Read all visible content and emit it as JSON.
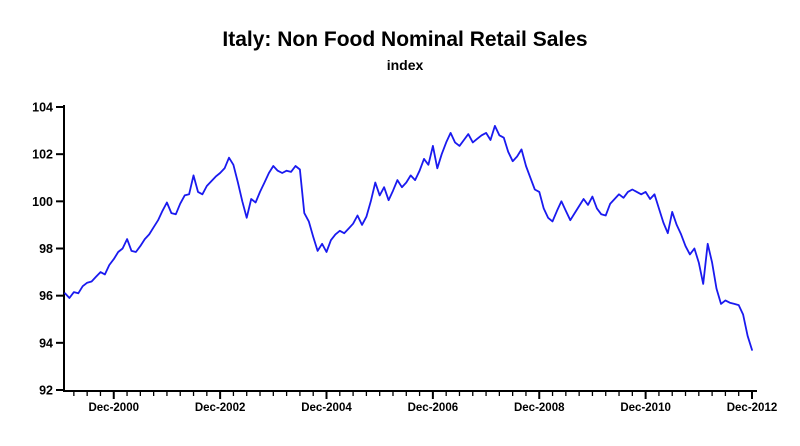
{
  "chart_data": {
    "type": "line",
    "title": "Italy: Non Food Nominal Retail Sales",
    "subtitle": "index",
    "x_start": "Jan-2000",
    "x_end": "Dec-2012",
    "frequency": "monthly",
    "ylim": [
      92,
      104
    ],
    "y_ticks": [
      104,
      102,
      100,
      98,
      96,
      94,
      92
    ],
    "x_tick_labels": [
      {
        "month_index": 11,
        "label": "Dec-2000"
      },
      {
        "month_index": 35,
        "label": "Dec-2002"
      },
      {
        "month_index": 59,
        "label": "Dec-2004"
      },
      {
        "month_index": 83,
        "label": "Dec-2006"
      },
      {
        "month_index": 107,
        "label": "Dec-2008"
      },
      {
        "month_index": 131,
        "label": "Dec-2010"
      },
      {
        "month_index": 155,
        "label": "Dec-2012"
      }
    ],
    "minor_tick_rule": {
      "start_month_index": 2,
      "step": 3
    },
    "grid": "off",
    "legend": "none",
    "line_color": "#1a1aef",
    "axis_color": "#000000",
    "series": [
      {
        "name": "non-food-nominal-retail-sales-index",
        "values": [
          96.1,
          95.9,
          96.15,
          96.1,
          96.4,
          96.55,
          96.6,
          96.8,
          97.0,
          96.9,
          97.3,
          97.55,
          97.85,
          98.0,
          98.4,
          97.9,
          97.85,
          98.1,
          98.4,
          98.6,
          98.9,
          99.2,
          99.6,
          99.95,
          99.5,
          99.45,
          99.9,
          100.25,
          100.3,
          101.1,
          100.4,
          100.3,
          100.65,
          100.85,
          101.05,
          101.2,
          101.4,
          101.85,
          101.55,
          100.8,
          100.0,
          99.3,
          100.1,
          99.95,
          100.4,
          100.8,
          101.2,
          101.5,
          101.3,
          101.2,
          101.3,
          101.25,
          101.5,
          101.35,
          99.5,
          99.15,
          98.5,
          97.9,
          98.2,
          97.85,
          98.35,
          98.6,
          98.75,
          98.65,
          98.85,
          99.05,
          99.4,
          99.0,
          99.35,
          100.0,
          100.8,
          100.25,
          100.6,
          100.05,
          100.45,
          100.9,
          100.6,
          100.8,
          101.1,
          100.9,
          101.3,
          101.8,
          101.55,
          102.35,
          101.4,
          102.0,
          102.5,
          102.9,
          102.5,
          102.35,
          102.6,
          102.85,
          102.5,
          102.65,
          102.8,
          102.9,
          102.6,
          103.2,
          102.8,
          102.7,
          102.1,
          101.7,
          101.9,
          102.2,
          101.5,
          101.0,
          100.5,
          100.4,
          99.7,
          99.3,
          99.15,
          99.6,
          100.0,
          99.6,
          99.2,
          99.5,
          99.8,
          100.1,
          99.85,
          100.2,
          99.7,
          99.45,
          99.4,
          99.9,
          100.1,
          100.3,
          100.15,
          100.4,
          100.5,
          100.4,
          100.3,
          100.4,
          100.1,
          100.3,
          99.7,
          99.1,
          98.65,
          99.55,
          99.0,
          98.6,
          98.1,
          97.75,
          98.0,
          97.4,
          96.5,
          98.2,
          97.4,
          96.3,
          95.65,
          95.8,
          95.7,
          95.65,
          95.6,
          95.2,
          94.3,
          93.7
        ]
      }
    ]
  }
}
